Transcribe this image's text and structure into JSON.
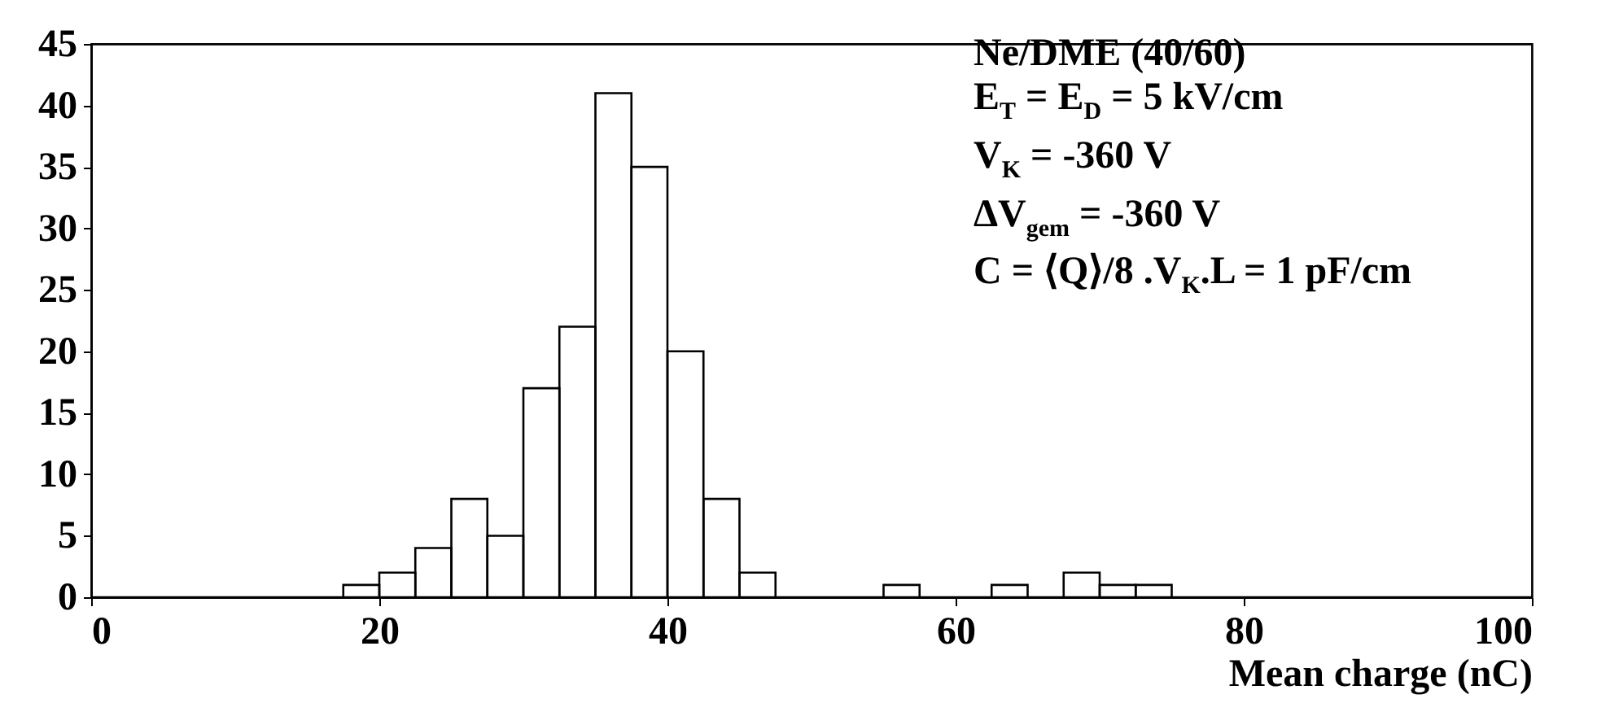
{
  "chart_data": {
    "type": "histogram",
    "xlabel": "Mean charge (nC)",
    "bins": [
      0,
      2.5,
      5,
      7.5,
      10,
      12.5,
      15,
      17.5,
      20,
      22.5,
      25,
      27.5,
      30,
      32.5,
      35,
      37.5,
      40,
      42.5,
      45,
      47.5,
      50,
      52.5,
      55,
      57.5,
      60,
      62.5,
      65,
      67.5,
      70,
      72.5,
      75,
      77.5,
      80,
      82.5,
      85,
      87.5,
      90,
      92.5,
      95,
      97.5,
      100
    ],
    "values": [
      0,
      0,
      0,
      0,
      0,
      0,
      0,
      1,
      2,
      4,
      8,
      5,
      17,
      22,
      41,
      35,
      20,
      8,
      2,
      0,
      0,
      0,
      1,
      0,
      0,
      1,
      0,
      2,
      1,
      1,
      0,
      0,
      0,
      0,
      0,
      0,
      0,
      0,
      0,
      0
    ],
    "color": "#000000",
    "xlim": [
      0,
      100
    ],
    "xticks": [
      0,
      20,
      40,
      60,
      80,
      100
    ],
    "ylim": [
      0,
      45
    ],
    "yticks": [
      0,
      5,
      10,
      15,
      20,
      25,
      30,
      35,
      40,
      45
    ],
    "grid": false,
    "annotations": [
      "Ne/DME (40/60)",
      "E$_{T}$ = E$_{D}$ = 5 kV/cm",
      "V$_{K}$ = -360 V",
      "ΔV$_{gem}$ = -360 V",
      "C = ⟨Q⟩/8 .V$_{K}$.L = 1 pF/cm"
    ]
  }
}
